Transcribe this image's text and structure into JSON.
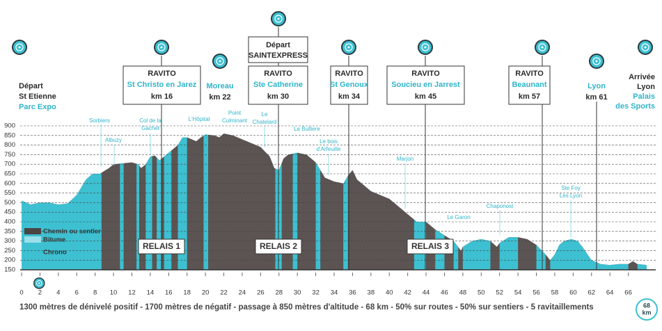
{
  "chart_data": {
    "type": "area",
    "x": [
      0,
      1,
      2,
      3,
      4,
      5,
      6,
      7,
      7.7,
      8.5,
      9.5,
      10,
      11,
      12,
      12.7,
      13,
      13.5,
      14,
      14.5,
      15,
      15.5,
      16,
      17,
      17.5,
      18,
      19,
      19.5,
      20,
      21,
      21.5,
      22,
      23,
      24,
      25,
      26,
      27,
      27.5,
      28,
      28.5,
      29,
      30,
      31,
      32,
      33,
      34,
      35,
      35.5,
      36,
      36.5,
      37,
      38,
      39,
      40,
      41,
      42,
      43,
      44,
      45,
      46,
      47,
      47.8,
      48,
      49,
      50,
      51,
      51.7,
      52,
      53,
      54,
      55,
      56,
      57,
      57.5,
      58,
      58.5,
      59,
      59.8,
      60.5,
      61,
      62,
      63,
      64,
      65,
      66,
      66.5,
      67,
      68
    ],
    "values": [
      510,
      490,
      500,
      500,
      490,
      495,
      540,
      620,
      650,
      650,
      680,
      700,
      705,
      710,
      700,
      680,
      700,
      740,
      745,
      720,
      740,
      760,
      800,
      840,
      840,
      820,
      840,
      855,
      850,
      840,
      860,
      850,
      830,
      810,
      790,
      740,
      680,
      670,
      730,
      750,
      760,
      750,
      710,
      630,
      610,
      600,
      640,
      670,
      620,
      600,
      560,
      540,
      520,
      480,
      440,
      400,
      400,
      360,
      330,
      300,
      250,
      270,
      300,
      310,
      300,
      270,
      290,
      320,
      320,
      310,
      280,
      230,
      200,
      230,
      280,
      300,
      310,
      300,
      270,
      200,
      180,
      175,
      180,
      180,
      195,
      180,
      175
    ],
    "xlim": [
      0,
      68
    ],
    "ylim": [
      150,
      900
    ],
    "xticks": [
      0,
      2,
      4,
      6,
      8,
      10,
      12,
      14,
      16,
      18,
      20,
      22,
      24,
      26,
      28,
      30,
      32,
      34,
      36,
      38,
      40,
      42,
      44,
      46,
      48,
      50,
      52,
      54,
      56,
      58,
      60,
      62,
      64,
      66
    ],
    "yticks": [
      150,
      200,
      250,
      300,
      350,
      400,
      450,
      500,
      550,
      600,
      650,
      700,
      750,
      800,
      850,
      900
    ],
    "grid": true,
    "color": "#5b5452",
    "bitume_color": "#3dc0d1",
    "bitume": [
      [
        0,
        8.7
      ],
      [
        10.7,
        11.1
      ],
      [
        12.5,
        12.8
      ],
      [
        13.5,
        14.2
      ],
      [
        14.7,
        15.2
      ],
      [
        15.5,
        16.3
      ],
      [
        17,
        18
      ],
      [
        19.8,
        20.3
      ],
      [
        27.6,
        28.3
      ],
      [
        29.5,
        30
      ],
      [
        32,
        32.5
      ],
      [
        35,
        35.5
      ],
      [
        42.7,
        44
      ],
      [
        45,
        46
      ],
      [
        47,
        47.5
      ],
      [
        48,
        51
      ],
      [
        52,
        54
      ],
      [
        56,
        57
      ],
      [
        57.5,
        66
      ],
      [
        67,
        68
      ]
    ]
  },
  "stations": [
    {
      "lines": [
        "Départ",
        "St Etienne",
        "Parc Expo"
      ]
    },
    {
      "lines": [
        "RAVITO",
        "St Christo en Jarez",
        "km 16"
      ]
    },
    {
      "lines": [
        "Moreau",
        "km 22"
      ]
    },
    {
      "depart": [
        "Départ",
        "SAINTEXPRESS"
      ],
      "lines": [
        "RAVITO",
        "Ste Catherine",
        "km 30"
      ]
    },
    {
      "lines": [
        "RAVITO",
        "St Genoux",
        "km 34"
      ]
    },
    {
      "lines": [
        "RAVITO",
        "Soucieu en Jarrest",
        "km 45"
      ]
    },
    {
      "lines": [
        "RAVITO",
        "Beaunant",
        "km 57"
      ]
    },
    {
      "lines": [
        "Lyon",
        "km 61"
      ]
    },
    {
      "lines": [
        "Arrivée",
        "Lyon",
        "Palais",
        "des Sports"
      ]
    }
  ],
  "places": [
    [
      "Sorbiers"
    ],
    [
      "Albuzy"
    ],
    [
      "Col de la",
      "Gachet"
    ],
    [
      "L'Hôpital"
    ],
    [
      "Point",
      "Culminant"
    ],
    [
      "Le",
      "Chatelard"
    ],
    [
      "La Bulliere"
    ],
    [
      "Le bois",
      "d'Arfeuille"
    ],
    [
      "Marjon"
    ],
    [
      "Le Garon"
    ],
    [
      "Chaponost"
    ],
    [
      "Ste Foy",
      "Les Lyon"
    ]
  ],
  "legend": [
    "Chemin ou sentier",
    "Bitume",
    "Chrono"
  ],
  "relais": [
    "RELAIS 1",
    "RELAIS 2",
    "RELAIS 3"
  ],
  "footer": "1300 mètres de dénivelé positif - 1700 mètres de négatif - passage à 850 mètres d'altitude - 68 km - 50% sur routes - 50% sur sentiers - 5  ravitaillements",
  "end_badge": [
    "68",
    "km"
  ]
}
